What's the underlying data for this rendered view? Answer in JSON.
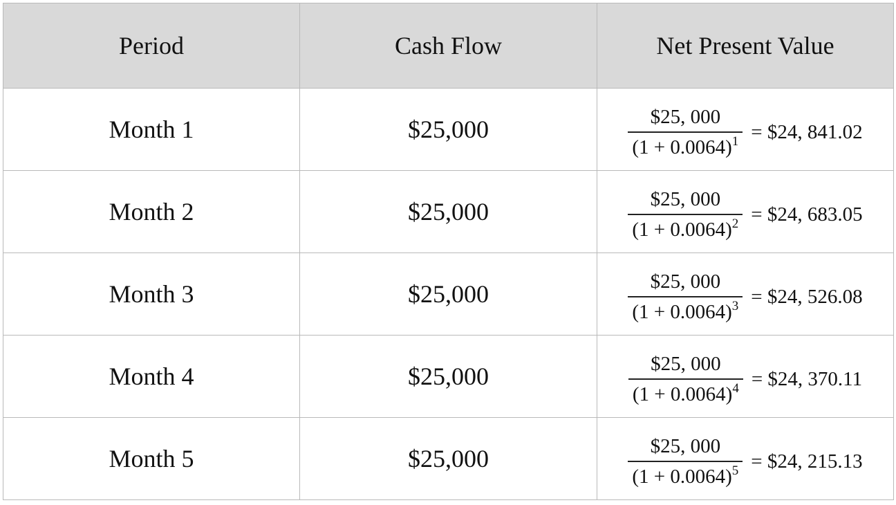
{
  "table": {
    "headers": [
      "Period",
      "Cash Flow",
      "Net Present Value"
    ],
    "rows": [
      {
        "period": "Month 1",
        "cash_flow": "$25,000",
        "npv": {
          "numerator": "$25, 000",
          "denominator_base": "(1 + 0.0064)",
          "exponent": "1",
          "result": "= $24, 841.02"
        }
      },
      {
        "period": "Month 2",
        "cash_flow": "$25,000",
        "npv": {
          "numerator": "$25, 000",
          "denominator_base": "(1 + 0.0064)",
          "exponent": "2",
          "result": "= $24, 683.05"
        }
      },
      {
        "period": "Month 3",
        "cash_flow": "$25,000",
        "npv": {
          "numerator": "$25, 000",
          "denominator_base": "(1 + 0.0064)",
          "exponent": "3",
          "result": "= $24, 526.08"
        }
      },
      {
        "period": "Month 4",
        "cash_flow": "$25,000",
        "npv": {
          "numerator": "$25, 000",
          "denominator_base": "(1 + 0.0064)",
          "exponent": "4",
          "result": "= $24, 370.11"
        }
      },
      {
        "period": "Month 5",
        "cash_flow": "$25,000",
        "npv": {
          "numerator": "$25, 000",
          "denominator_base": "(1 + 0.0064)",
          "exponent": "5",
          "result": "= $24, 215.13"
        }
      }
    ]
  }
}
